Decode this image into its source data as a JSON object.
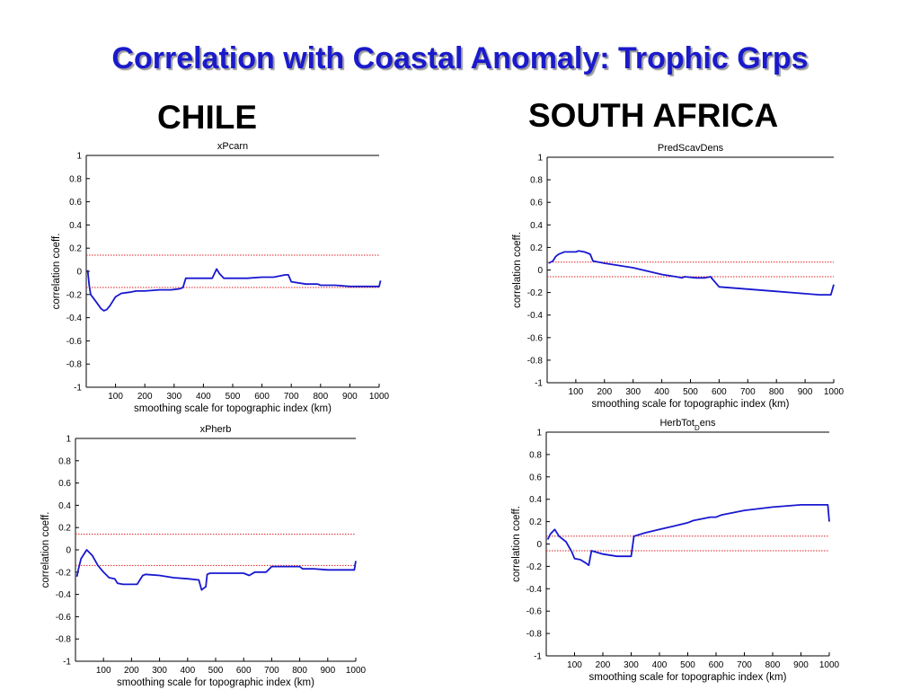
{
  "title": "Correlation with Coastal Anomaly: Trophic Grps",
  "regions": [
    "CHILE",
    "SOUTH AFRICA"
  ],
  "colors": {
    "title": "#1a1acc",
    "series": "#1818d0",
    "threshold": "#e02020"
  },
  "chart_data": [
    {
      "type": "line",
      "title": "xPcarn",
      "xlabel": "smoothing scale for topographic index (km)",
      "ylabel": "correlation coeff.",
      "xlim": [
        0,
        1000
      ],
      "ylim": [
        -1,
        1
      ],
      "xticks": [
        100,
        200,
        300,
        400,
        500,
        600,
        700,
        800,
        900,
        1000
      ],
      "yticks": [
        1,
        0.8,
        0.6,
        0.4,
        0.2,
        0,
        -0.2,
        -0.4,
        -0.6,
        -0.8,
        -1
      ],
      "thresholds": [
        0.14,
        -0.14
      ],
      "x": [
        5,
        10,
        15,
        30,
        50,
        60,
        70,
        80,
        100,
        120,
        150,
        170,
        200,
        250,
        290,
        320,
        330,
        340,
        350,
        430,
        445,
        455,
        470,
        500,
        550,
        600,
        640,
        680,
        690,
        700,
        750,
        790,
        800,
        810,
        850,
        900,
        950,
        1000,
        1005
      ],
      "y": [
        0.01,
        -0.12,
        -0.2,
        -0.25,
        -0.32,
        -0.34,
        -0.33,
        -0.3,
        -0.22,
        -0.19,
        -0.18,
        -0.17,
        -0.17,
        -0.16,
        -0.16,
        -0.15,
        -0.14,
        -0.06,
        -0.06,
        -0.06,
        0.02,
        -0.02,
        -0.06,
        -0.06,
        -0.06,
        -0.05,
        -0.05,
        -0.03,
        -0.03,
        -0.09,
        -0.11,
        -0.11,
        -0.12,
        -0.12,
        -0.12,
        -0.13,
        -0.13,
        -0.13,
        -0.08
      ]
    },
    {
      "type": "line",
      "title": "PredScavDens",
      "xlabel": "smoothing scale for topographic index (km)",
      "ylabel": "correlation coeff.",
      "xlim": [
        0,
        1000
      ],
      "ylim": [
        -1,
        1
      ],
      "xticks": [
        100,
        200,
        300,
        400,
        500,
        600,
        700,
        800,
        900,
        1000
      ],
      "yticks": [
        1,
        0.8,
        0.6,
        0.4,
        0.2,
        0,
        -0.2,
        -0.4,
        -0.6,
        -0.8,
        -1
      ],
      "thresholds": [
        0.07,
        -0.06
      ],
      "x": [
        5,
        20,
        30,
        40,
        60,
        100,
        110,
        130,
        150,
        160,
        200,
        250,
        300,
        350,
        400,
        450,
        470,
        480,
        520,
        550,
        570,
        580,
        600,
        700,
        800,
        900,
        950,
        990,
        1000
      ],
      "y": [
        0.06,
        0.08,
        0.12,
        0.14,
        0.16,
        0.16,
        0.17,
        0.16,
        0.14,
        0.08,
        0.06,
        0.04,
        0.02,
        -0.01,
        -0.04,
        -0.06,
        -0.07,
        -0.06,
        -0.07,
        -0.07,
        -0.06,
        -0.09,
        -0.15,
        -0.17,
        -0.19,
        -0.21,
        -0.22,
        -0.22,
        -0.13
      ]
    },
    {
      "type": "line",
      "title": "xPherb",
      "xlabel": "smoothing scale for topographic index (km)",
      "ylabel": "correlation coeff.",
      "xlim": [
        0,
        1000
      ],
      "ylim": [
        -1,
        1
      ],
      "xticks": [
        100,
        200,
        300,
        400,
        500,
        600,
        700,
        800,
        900,
        1000
      ],
      "yticks": [
        1,
        0.8,
        0.6,
        0.4,
        0.2,
        0,
        -0.2,
        -0.4,
        -0.6,
        -0.8,
        -1
      ],
      "thresholds": [
        0.14,
        -0.14
      ],
      "x": [
        5,
        10,
        20,
        40,
        60,
        80,
        100,
        120,
        140,
        150,
        170,
        220,
        240,
        250,
        300,
        350,
        400,
        440,
        450,
        460,
        465,
        470,
        480,
        500,
        550,
        600,
        620,
        640,
        680,
        700,
        750,
        800,
        810,
        850,
        900,
        950,
        995,
        1000
      ],
      "y": [
        -0.24,
        -0.18,
        -0.08,
        0.0,
        -0.05,
        -0.14,
        -0.2,
        -0.25,
        -0.26,
        -0.3,
        -0.31,
        -0.31,
        -0.23,
        -0.22,
        -0.23,
        -0.25,
        -0.26,
        -0.27,
        -0.36,
        -0.34,
        -0.33,
        -0.22,
        -0.21,
        -0.21,
        -0.21,
        -0.21,
        -0.23,
        -0.2,
        -0.2,
        -0.15,
        -0.15,
        -0.15,
        -0.17,
        -0.17,
        -0.18,
        -0.18,
        -0.18,
        -0.1
      ]
    },
    {
      "type": "line",
      "title": "HerbTot_Dens",
      "xlabel": "smoothing scale for topographic index (km)",
      "ylabel": "correlation coeff.",
      "xlim": [
        0,
        1000
      ],
      "ylim": [
        -1,
        1
      ],
      "xticks": [
        100,
        200,
        300,
        400,
        500,
        600,
        700,
        800,
        900,
        1000
      ],
      "yticks": [
        1,
        0.8,
        0.6,
        0.4,
        0.2,
        0,
        -0.2,
        -0.4,
        -0.6,
        -0.8,
        -1
      ],
      "thresholds": [
        0.07,
        -0.06
      ],
      "x": [
        5,
        15,
        30,
        45,
        70,
        90,
        100,
        120,
        140,
        150,
        160,
        200,
        250,
        300,
        310,
        350,
        400,
        450,
        500,
        520,
        560,
        580,
        600,
        620,
        700,
        800,
        900,
        995,
        1000
      ],
      "y": [
        0.04,
        0.09,
        0.13,
        0.07,
        0.02,
        -0.07,
        -0.13,
        -0.14,
        -0.17,
        -0.19,
        -0.06,
        -0.09,
        -0.11,
        -0.11,
        0.07,
        0.1,
        0.13,
        0.16,
        0.19,
        0.21,
        0.23,
        0.24,
        0.24,
        0.26,
        0.3,
        0.33,
        0.35,
        0.35,
        0.2
      ]
    }
  ]
}
